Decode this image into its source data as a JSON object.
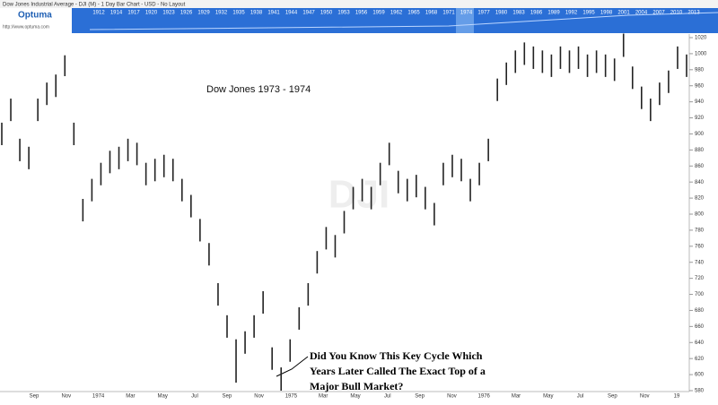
{
  "window": {
    "title": "Dow Jones Industrial Average - DJI (M) - 1 Day Bar Chart - USD - No Layout",
    "logo": "Optuma",
    "url": "http://www.optuma.com"
  },
  "timeline_years": [
    "1912",
    "1914",
    "1917",
    "1920",
    "1923",
    "1926",
    "1929",
    "1932",
    "1935",
    "1938",
    "1941",
    "1944",
    "1947",
    "1950",
    "1953",
    "1956",
    "1959",
    "1962",
    "1965",
    "1968",
    "1971",
    "1974",
    "1977",
    "1980",
    "1983",
    "1986",
    "1989",
    "1992",
    "1995",
    "1998",
    "2001",
    "2004",
    "2007",
    "2010",
    "2013"
  ],
  "chart_data": {
    "type": "ohlc",
    "watermark": "DJI",
    "title": "Dow Jones 1973 - 1974",
    "annotation": [
      "Did You Know This Key Cycle Which",
      "Years Later Called The Exact Top of a",
      "Major Bull Market?"
    ],
    "color": "#222222",
    "xtick_labels": [
      "Sep",
      "Nov",
      "1974",
      "Mar",
      "May",
      "Jul",
      "Sep",
      "Nov",
      "1975",
      "Mar",
      "May",
      "Jul",
      "Sep",
      "Nov",
      "1976",
      "Mar",
      "May",
      "Jul",
      "Sep",
      "Nov",
      "19"
    ],
    "high": [
      914,
      944,
      894,
      884,
      944,
      964,
      974,
      998,
      914,
      819,
      844,
      864,
      879,
      884,
      894,
      889,
      864,
      869,
      874,
      869,
      844,
      824,
      794,
      764,
      714,
      674,
      644,
      654,
      674,
      704,
      634,
      609,
      644,
      684,
      714,
      754,
      784,
      774,
      804,
      834,
      844,
      834,
      864,
      889,
      854,
      844,
      849,
      834,
      814,
      864,
      874,
      869,
      844,
      864,
      894,
      969,
      989,
      1004,
      1014,
      1009,
      1004,
      999,
      1009,
      1004,
      1009,
      999,
      1004,
      999,
      994,
      1025,
      984,
      959,
      944,
      964,
      979,
      1009,
      999
    ],
    "low": [
      886,
      916,
      866,
      856,
      916,
      936,
      946,
      972,
      886,
      791,
      816,
      836,
      851,
      856,
      866,
      861,
      836,
      841,
      846,
      841,
      816,
      796,
      766,
      736,
      686,
      646,
      590,
      626,
      646,
      676,
      606,
      580,
      616,
      656,
      686,
      726,
      756,
      746,
      776,
      806,
      816,
      806,
      836,
      861,
      826,
      816,
      821,
      806,
      786,
      836,
      846,
      841,
      816,
      836,
      866,
      941,
      961,
      976,
      986,
      981,
      976,
      971,
      981,
      976,
      981,
      971,
      976,
      971,
      966,
      996,
      956,
      931,
      916,
      936,
      951,
      981,
      971
    ],
    "ylim": [
      580,
      1020
    ],
    "yticks": [
      580,
      600,
      620,
      640,
      660,
      680,
      700,
      720,
      740,
      760,
      780,
      800,
      820,
      840,
      860,
      880,
      900,
      920,
      940,
      960,
      980,
      1000,
      1020
    ]
  }
}
